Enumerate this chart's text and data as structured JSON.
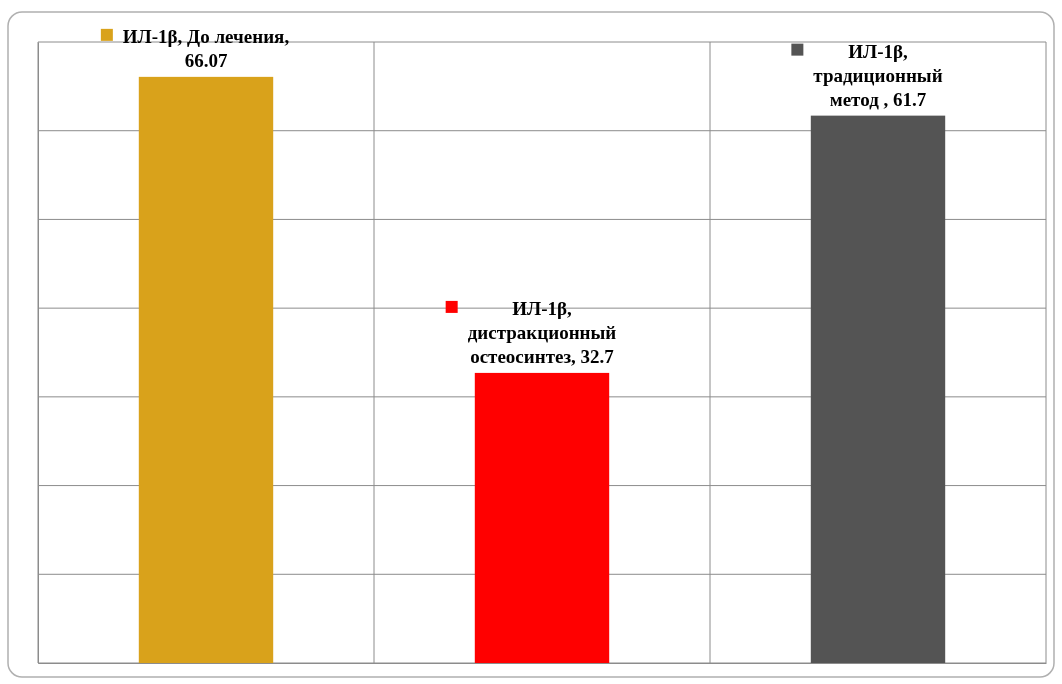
{
  "chart_data": {
    "type": "bar",
    "categories": [
      null,
      null,
      null
    ],
    "values": [
      66.07,
      32.7,
      61.7
    ],
    "colors": [
      "#d9a21b",
      "#ff0000",
      "#545454"
    ],
    "value_labels": [
      "ИЛ-1β, До лечения, 66.07",
      "ИЛ-1β, дистракционный остеосинтез, 32.7",
      "ИЛ-1β, традиционный метод , 61.7"
    ],
    "ylim": [
      0,
      70
    ],
    "yticks": [
      {
        "value": 0,
        "label": null
      },
      {
        "value": 10,
        "label": null
      },
      {
        "value": 20,
        "label": null
      },
      {
        "value": 30,
        "label": null
      },
      {
        "value": 40,
        "label": null
      },
      {
        "value": 50,
        "label": null
      },
      {
        "value": 60,
        "label": null
      },
      {
        "value": 70,
        "label": null
      }
    ],
    "grid": true
  }
}
